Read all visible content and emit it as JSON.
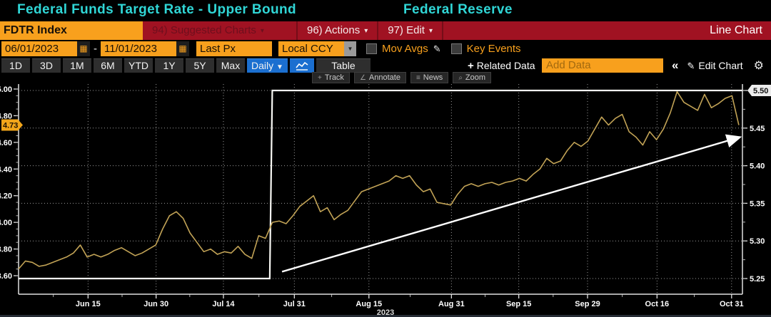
{
  "window": {
    "title": "Federal Funds Target Rate - Upper Bound",
    "subtitle": "Federal Reserve"
  },
  "icons": {
    "caret": "▾",
    "dropdown_arrow": "▼",
    "calendar": "▦",
    "pencil": "✎",
    "plus": "+",
    "collapse": "«",
    "gear": "⚙"
  },
  "menubar": {
    "ticker": "FDTR Index",
    "suggested_charts": "94) Suggested Charts",
    "actions": "96) Actions",
    "edit": "97) Edit",
    "chart_type": "Line Chart"
  },
  "fieldbar": {
    "start_date": "06/01/2023",
    "end_date": "11/01/2023",
    "dash": "-",
    "price_field": "Last Px",
    "currency": "Local CCY",
    "mov_avgs_label": "Mov Avgs",
    "key_events_label": "Key Events"
  },
  "toolbar": {
    "ranges": [
      "1D",
      "3D",
      "1M",
      "6M",
      "YTD",
      "1Y",
      "5Y",
      "Max"
    ],
    "frequency": "Daily",
    "table_label": "Table",
    "related_data_label": "Related Data",
    "add_data_placeholder": "Add Data",
    "edit_chart_label": "Edit Chart"
  },
  "chart_toolbar": [
    {
      "name": "track",
      "icon": "+",
      "label": "Track"
    },
    {
      "name": "annotate",
      "icon": "∠",
      "label": "Annotate"
    },
    {
      "name": "news",
      "icon": "≡",
      "label": "News"
    },
    {
      "name": "zoom",
      "icon": "⌕",
      "label": "Zoom"
    }
  ],
  "colors": {
    "accent_cyan": "#30d6d6",
    "menubar_red": "#a01222",
    "field_orange": "#f8a01d",
    "button_blue": "#1b6fd0",
    "price_line_amber": "#c2a356",
    "target_line_white": "#f8f8f4",
    "grid": "#8a8a8a",
    "axis": "#e0e0e0",
    "left_tag_bg": "#f2a51a",
    "right_tag_bg": "#ececec"
  },
  "chart_data": {
    "type": "line",
    "title": "Federal Funds Target Rate - Upper Bound",
    "x_year_label": "2023",
    "grid": "dotted",
    "legend_position": "none",
    "x_ticks": [
      {
        "label": "Jun 15",
        "f": 0.096
      },
      {
        "label": "Jun 30",
        "f": 0.19
      },
      {
        "label": "Jul 14",
        "f": 0.283
      },
      {
        "label": "Jul 31",
        "f": 0.381
      },
      {
        "label": "Aug 15",
        "f": 0.484
      },
      {
        "label": "Aug 31",
        "f": 0.598
      },
      {
        "label": "Sep 15",
        "f": 0.691
      },
      {
        "label": "Sep 29",
        "f": 0.786
      },
      {
        "label": "Oct 16",
        "f": 0.882
      },
      {
        "label": "Oct 31",
        "f": 0.985
      }
    ],
    "left_axis": {
      "range": [
        3.6,
        5.0
      ],
      "ticks": [
        5.0,
        4.8,
        4.6,
        4.4,
        4.2,
        4.0,
        3.8,
        3.6
      ],
      "minor_step": 0.05,
      "last_price_tag": "4.73"
    },
    "right_axis": {
      "range": [
        5.25,
        5.5
      ],
      "ticks": [
        5.5,
        5.45,
        5.4,
        5.35,
        5.3,
        5.25
      ],
      "minor_step": 0.025,
      "last_price_tag": "5.50"
    },
    "series": [
      {
        "name": "market-rate-line",
        "axis": "left",
        "color": "#c2a356",
        "dates": [
          "Jun 1",
          "Jun 2",
          "Jun 5",
          "Jun 6",
          "Jun 7",
          "Jun 8",
          "Jun 9",
          "Jun 12",
          "Jun 13",
          "Jun 14",
          "Jun 15",
          "Jun 16",
          "Jun 20",
          "Jun 21",
          "Jun 22",
          "Jun 23",
          "Jun 26",
          "Jun 27",
          "Jun 28",
          "Jun 29",
          "Jun 30",
          "Jul 3",
          "Jul 5",
          "Jul 6",
          "Jul 7",
          "Jul 10",
          "Jul 11",
          "Jul 12",
          "Jul 13",
          "Jul 14",
          "Jul 17",
          "Jul 18",
          "Jul 19",
          "Jul 20",
          "Jul 21",
          "Jul 24",
          "Jul 25",
          "Jul 26",
          "Jul 27",
          "Jul 28",
          "Jul 31",
          "Aug 1",
          "Aug 2",
          "Aug 3",
          "Aug 4",
          "Aug 7",
          "Aug 8",
          "Aug 9",
          "Aug 10",
          "Aug 11",
          "Aug 14",
          "Aug 15",
          "Aug 16",
          "Aug 17",
          "Aug 18",
          "Aug 21",
          "Aug 22",
          "Aug 23",
          "Aug 24",
          "Aug 25",
          "Aug 28",
          "Aug 29",
          "Aug 30",
          "Aug 31",
          "Sep 1",
          "Sep 5",
          "Sep 6",
          "Sep 7",
          "Sep 8",
          "Sep 11",
          "Sep 12",
          "Sep 13",
          "Sep 14",
          "Sep 15",
          "Sep 18",
          "Sep 19",
          "Sep 20",
          "Sep 21",
          "Sep 22",
          "Sep 25",
          "Sep 26",
          "Sep 27",
          "Sep 28",
          "Sep 29",
          "Oct 2",
          "Oct 3",
          "Oct 4",
          "Oct 5",
          "Oct 6",
          "Oct 9",
          "Oct 10",
          "Oct 11",
          "Oct 12",
          "Oct 13",
          "Oct 16",
          "Oct 17",
          "Oct 18",
          "Oct 19",
          "Oct 20",
          "Oct 23",
          "Oct 24",
          "Oct 25",
          "Oct 26",
          "Oct 27",
          "Oct 30",
          "Oct 31"
        ],
        "values": [
          3.65,
          3.71,
          3.7,
          3.67,
          3.68,
          3.7,
          3.72,
          3.74,
          3.77,
          3.83,
          3.74,
          3.76,
          3.74,
          3.76,
          3.79,
          3.81,
          3.78,
          3.75,
          3.77,
          3.8,
          3.83,
          3.95,
          4.05,
          4.08,
          4.03,
          3.92,
          3.85,
          3.78,
          3.8,
          3.76,
          3.78,
          3.77,
          3.82,
          3.76,
          3.73,
          3.9,
          3.88,
          4.0,
          4.01,
          3.99,
          4.05,
          4.12,
          4.16,
          4.2,
          4.08,
          4.11,
          4.02,
          4.06,
          4.09,
          4.16,
          4.23,
          4.25,
          4.27,
          4.29,
          4.31,
          4.35,
          4.33,
          4.35,
          4.28,
          4.23,
          4.25,
          4.15,
          4.14,
          4.13,
          4.21,
          4.27,
          4.29,
          4.27,
          4.29,
          4.3,
          4.28,
          4.3,
          4.31,
          4.33,
          4.31,
          4.36,
          4.4,
          4.48,
          4.44,
          4.46,
          4.54,
          4.6,
          4.57,
          4.61,
          4.7,
          4.79,
          4.73,
          4.78,
          4.81,
          4.68,
          4.64,
          4.58,
          4.68,
          4.62,
          4.7,
          4.82,
          4.98,
          4.9,
          4.87,
          4.84,
          4.96,
          4.86,
          4.89,
          4.93,
          4.95,
          4.73
        ]
      },
      {
        "name": "fdtr-upper-bound-step",
        "axis": "right",
        "color": "#f8f8f4",
        "points": [
          {
            "date": "Jun 1",
            "f": 0.0,
            "value": 5.25
          },
          {
            "date": "Jul 26",
            "f": 0.347,
            "value": 5.25
          },
          {
            "date": "Jul 27",
            "f": 0.3505,
            "value": 5.5
          },
          {
            "date": "Oct 31",
            "f": 1.0,
            "value": 5.5
          }
        ]
      }
    ],
    "annotations": [
      {
        "type": "arrow",
        "axis": "left",
        "color": "#ffffff",
        "from": {
          "f": 0.364,
          "value": 3.63
        },
        "to": {
          "f": 0.997,
          "value": 4.64
        }
      }
    ]
  }
}
